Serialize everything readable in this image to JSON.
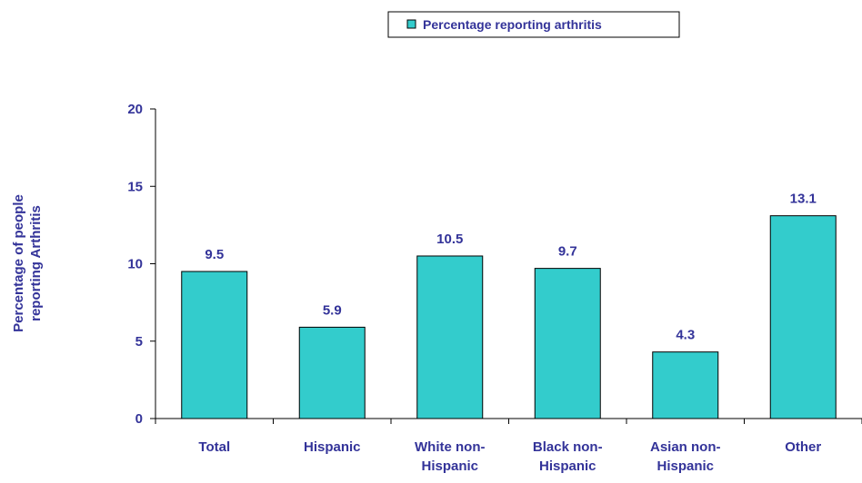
{
  "chart_data": {
    "type": "bar",
    "categories": [
      "Total",
      "Hispanic",
      "White non-Hispanic",
      "Black non-Hispanic",
      "Asian non-Hispanic",
      "Other"
    ],
    "category_lines": [
      [
        "Total"
      ],
      [
        "Hispanic"
      ],
      [
        "White non-",
        "Hispanic"
      ],
      [
        "Black non-",
        "Hispanic"
      ],
      [
        "Asian non-",
        "Hispanic"
      ],
      [
        "Other"
      ]
    ],
    "series": [
      {
        "name": "Percentage reporting arthritis",
        "values": [
          9.5,
          5.9,
          10.5,
          9.7,
          4.3,
          13.1
        ],
        "value_labels": [
          "9.5",
          "5.9",
          "10.5",
          "9.7",
          "4.3",
          "13.1"
        ]
      }
    ],
    "ylabel_lines": [
      "Percentage of people",
      "reporting Arthritis"
    ],
    "xlabel": "",
    "ylim": [
      0,
      20
    ],
    "yticks": [
      0,
      5,
      10,
      15,
      20
    ],
    "ytick_labels": [
      "0",
      "5",
      "10",
      "15",
      "20"
    ],
    "grid": false,
    "legend_position": "top-center",
    "colors": {
      "bar_fill": "#33CCCC",
      "bar_stroke": "#000000",
      "text": "#333399",
      "axis": "#000000"
    }
  }
}
